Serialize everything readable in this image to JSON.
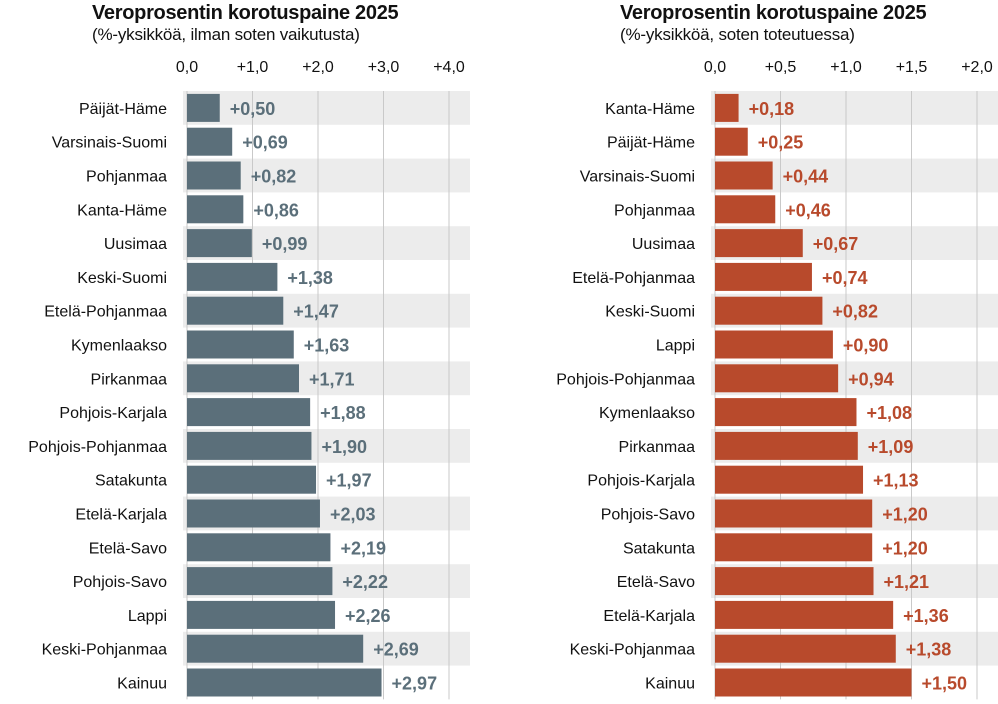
{
  "chart_data": [
    {
      "type": "bar",
      "orientation": "horizontal",
      "title": "Veroprosentin korotuspaine 2025",
      "subtitle": "(%-yksikköä, ilman soten vaikutusta)",
      "xlim": [
        0,
        4
      ],
      "xticks": [
        "0,0",
        "+1,0",
        "+2,0",
        "+3,0",
        "+4,0"
      ],
      "grid": true,
      "color": "#5b6f7a",
      "categories": [
        "Päijät-Häme",
        "Varsinais-Suomi",
        "Pohjanmaa",
        "Kanta-Häme",
        "Uusimaa",
        "Keski-Suomi",
        "Etelä-Pohjanmaa",
        "Kymenlaakso",
        "Pirkanmaa",
        "Pohjois-Karjala",
        "Pohjois-Pohjanmaa",
        "Satakunta",
        "Etelä-Karjala",
        "Etelä-Savo",
        "Pohjois-Savo",
        "Lappi",
        "Keski-Pohjanmaa",
        "Kainuu"
      ],
      "values": [
        0.5,
        0.69,
        0.82,
        0.86,
        0.99,
        1.38,
        1.47,
        1.63,
        1.71,
        1.88,
        1.9,
        1.97,
        2.03,
        2.19,
        2.22,
        2.26,
        2.69,
        2.97
      ],
      "value_labels": [
        "+0,50",
        "+0,69",
        "+0,82",
        "+0,86",
        "+0,99",
        "+1,38",
        "+1,47",
        "+1,63",
        "+1,71",
        "+1,88",
        "+1,90",
        "+1,97",
        "+2,03",
        "+2,19",
        "+2,22",
        "+2,26",
        "+2,69",
        "+2,97"
      ]
    },
    {
      "type": "bar",
      "orientation": "horizontal",
      "title": "Veroprosentin korotuspaine 2025",
      "subtitle": "(%-yksikköä, soten toteutuessa)",
      "xlim": [
        0,
        2
      ],
      "xticks": [
        "0,0",
        "+0,5",
        "+1,0",
        "+1,5",
        "+2,0"
      ],
      "grid": true,
      "color": "#b84a2c",
      "categories": [
        "Kanta-Häme",
        "Päijät-Häme",
        "Varsinais-Suomi",
        "Pohjanmaa",
        "Uusimaa",
        "Etelä-Pohjanmaa",
        "Keski-Suomi",
        "Lappi",
        "Pohjois-Pohjanmaa",
        "Kymenlaakso",
        "Pirkanmaa",
        "Pohjois-Karjala",
        "Pohjois-Savo",
        "Satakunta",
        "Etelä-Savo",
        "Etelä-Karjala",
        "Keski-Pohjanmaa",
        "Kainuu"
      ],
      "values": [
        0.18,
        0.25,
        0.44,
        0.46,
        0.67,
        0.74,
        0.82,
        0.9,
        0.94,
        1.08,
        1.09,
        1.13,
        1.2,
        1.2,
        1.21,
        1.36,
        1.38,
        1.5
      ],
      "value_labels": [
        "+0,18",
        "+0,25",
        "+0,44",
        "+0,46",
        "+0,67",
        "+0,74",
        "+0,82",
        "+0,90",
        "+0,94",
        "+1,08",
        "+1,09",
        "+1,13",
        "+1,20",
        "+1,20",
        "+1,21",
        "+1,36",
        "+1,38",
        "+1,50"
      ]
    }
  ]
}
